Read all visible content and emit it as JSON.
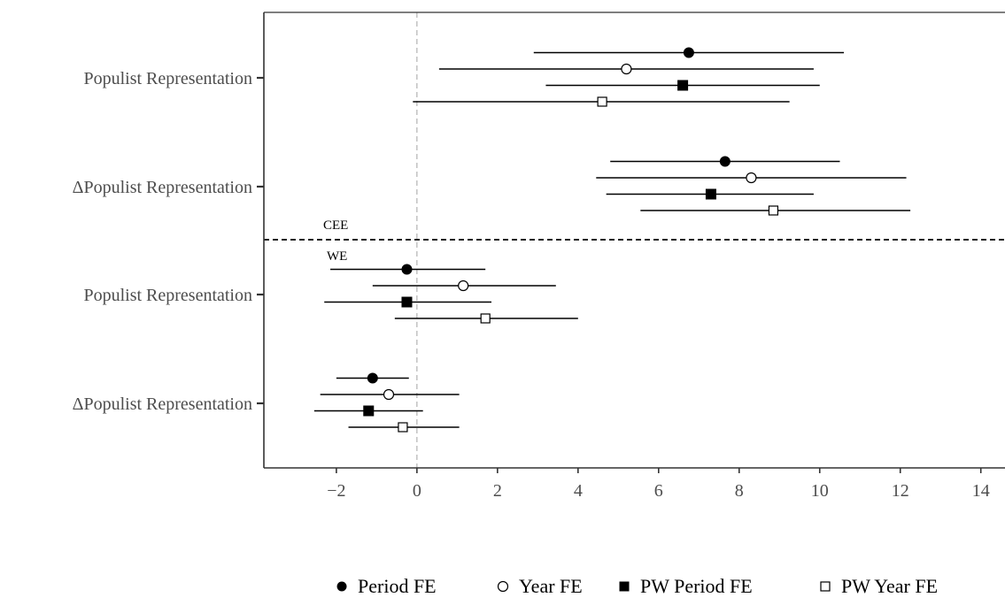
{
  "chart_data": {
    "type": "scatter",
    "subtype": "coefficient-plot-with-confidence-intervals",
    "title": "",
    "xlabel": "",
    "ylabel": "",
    "xlim": [
      -3.8,
      14.6
    ],
    "x_ticks": [
      -2,
      0,
      2,
      4,
      6,
      8,
      10,
      12,
      14
    ],
    "x_tick_labels": [
      "−2",
      "0",
      "2",
      "4",
      "6",
      "8",
      "10",
      "12",
      "14"
    ],
    "grid": false,
    "reference_line": {
      "x": 0,
      "style": "dashed",
      "color": "#b3b3b3"
    },
    "divider": {
      "style": "dashed",
      "color": "#000000"
    },
    "legend_position": "bottom",
    "categories": [
      "Populist Representation",
      "ΔPopulist Representation",
      "Populist Representation",
      "ΔPopulist Representation"
    ],
    "groups": [
      {
        "label": "CEE",
        "category_indices": [
          0,
          1
        ]
      },
      {
        "label": "WE",
        "category_indices": [
          2,
          3
        ]
      }
    ],
    "series": [
      {
        "name": "Period FE",
        "marker": "filled-circle",
        "estimates": [
          6.75,
          7.65,
          -0.25,
          -1.1
        ],
        "ci_low": [
          2.9,
          4.8,
          -2.15,
          -2.0
        ],
        "ci_high": [
          10.6,
          10.5,
          1.7,
          -0.2
        ]
      },
      {
        "name": "Year FE",
        "marker": "open-circle",
        "estimates": [
          5.2,
          8.3,
          1.15,
          -0.7
        ],
        "ci_low": [
          0.55,
          4.45,
          -1.1,
          -2.4
        ],
        "ci_high": [
          9.85,
          12.15,
          3.45,
          1.05
        ]
      },
      {
        "name": "PW Period FE",
        "marker": "filled-square",
        "estimates": [
          6.6,
          7.3,
          -0.25,
          -1.2
        ],
        "ci_low": [
          3.2,
          4.7,
          -2.3,
          -2.55
        ],
        "ci_high": [
          10.0,
          9.85,
          1.85,
          0.15
        ]
      },
      {
        "name": "PW Year FE",
        "marker": "open-square",
        "estimates": [
          4.6,
          8.85,
          1.7,
          -0.35
        ],
        "ci_low": [
          -0.1,
          5.55,
          -0.55,
          -1.7
        ],
        "ci_high": [
          9.25,
          12.25,
          4.0,
          1.05
        ]
      }
    ]
  }
}
